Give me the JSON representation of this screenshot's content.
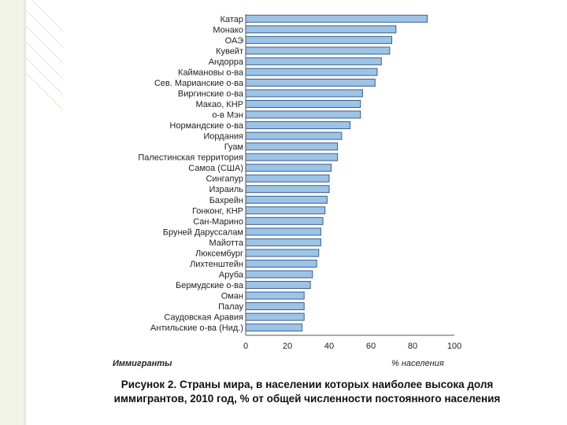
{
  "chart_data": {
    "type": "bar",
    "orientation": "horizontal",
    "categories": [
      "Катар",
      "Монако",
      "ОАЭ",
      "Кувейт",
      "Андорра",
      "Каймановы о-ва",
      "Сев. Марианские о-ва",
      "Виргинские о-ва",
      "Макао, КНР",
      "о-в Мэн",
      "Нормандские о-ва",
      "Иордания",
      "Гуам",
      "Палестинская территория",
      "Самоа (США)",
      "Сингапур",
      "Израиль",
      "Бахрейн",
      "Гонконг, КНР",
      "Сан-Марино",
      "Бруней Даруссалам",
      "Майотта",
      "Люксембург",
      "Лихтенштейн",
      "Аруба",
      "Бермудские о-ва",
      "Оман",
      "Палау",
      "Саудовская Аравия",
      "Антильские о-ва (Нид.)"
    ],
    "values": [
      87,
      72,
      70,
      69,
      65,
      63,
      62,
      56,
      55,
      55,
      50,
      46,
      44,
      44,
      41,
      40,
      40,
      39,
      38,
      37,
      36,
      36,
      35,
      34,
      32,
      31,
      28,
      28,
      28,
      27
    ],
    "xlim": [
      0,
      100
    ],
    "xticks": [
      "0",
      "20",
      "40",
      "60",
      "80",
      "100"
    ],
    "xticks_values": [
      0,
      20,
      40,
      60,
      80,
      100
    ],
    "grid": false,
    "bar_color": "#9dc3e6",
    "bar_edge": "#3a5f8a",
    "left_axis_title": "Иммигранты",
    "right_axis_title": "% населения"
  },
  "caption": {
    "line1": "Рисунок 2. Страны мира, в населении которых наиболее высока доля",
    "line2": "иммигрантов, 2010 год, % от общей численности постоянного населения"
  }
}
